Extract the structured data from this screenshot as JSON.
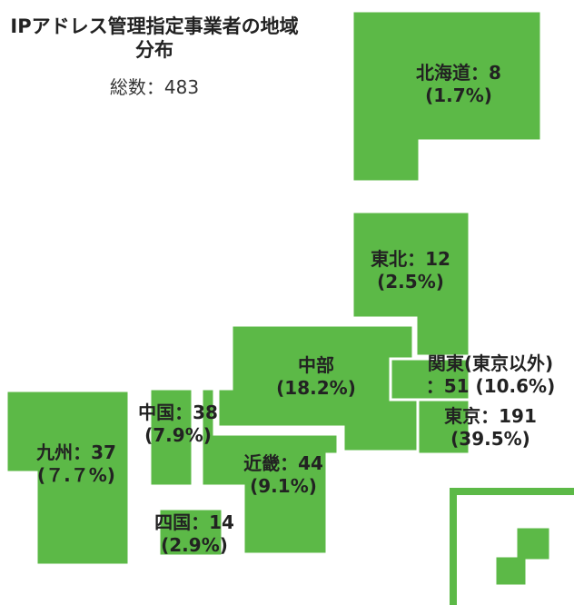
{
  "title": "IPアドレス管理指定事業者の地域分布",
  "subtitle": "総数：483",
  "regions": [
    {
      "lines": [
        "北海道：8",
        "(1.7%)"
      ]
    },
    {
      "lines": [
        "東北：12",
        "(2.5%)"
      ]
    },
    {
      "lines": [
        "関東(東京以外)",
        "：51 (10.6%)"
      ]
    },
    {
      "lines": [
        "東京：191",
        "(39.5%)"
      ]
    },
    {
      "lines": [
        "中部",
        "(18.2%)"
      ]
    },
    {
      "lines": [
        "近畿：44",
        "(9.1%)"
      ]
    },
    {
      "lines": [
        "中国：38",
        "(7.9%)"
      ]
    },
    {
      "lines": [
        "四国：14",
        "(2.9%)"
      ]
    },
    {
      "lines": [
        "九州：37",
        "(７.７%)"
      ]
    }
  ]
}
